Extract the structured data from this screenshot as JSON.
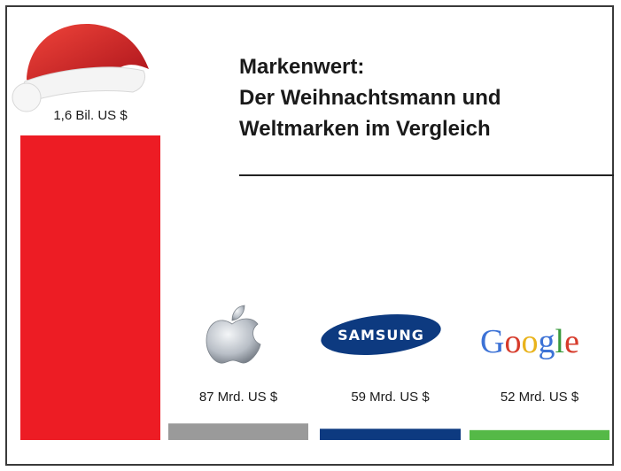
{
  "title": {
    "line1": "Markenwert:",
    "line2": "Der Weihnachtsmann und",
    "line3": "Weltmarken im Vergleich"
  },
  "colors": {
    "santa": "#ed1c24",
    "apple": "#9a9a9a",
    "samsung": "#0d3a80",
    "google": "#55b947"
  },
  "icons": {
    "santa": "santa-hat-icon",
    "apple": "apple-logo-icon",
    "samsung": "samsung-logo-icon",
    "google": "google-logo-icon"
  },
  "logos": {
    "samsung": "SAMSUNG",
    "google": [
      "G",
      "o",
      "o",
      "g",
      "l",
      "e"
    ]
  },
  "chart_data": {
    "type": "bar",
    "categories": [
      "Weihnachtsmann",
      "Apple",
      "Samsung",
      "Google"
    ],
    "values": [
      1600,
      87,
      59,
      52
    ],
    "value_labels": [
      "1,6 Bil. US $",
      "87 Mrd. US $",
      "59 Mrd. US $",
      "52 Mrd. US $"
    ],
    "title": "Markenwert: Der Weihnachtsmann und Weltmarken im Vergleich",
    "xlabel": "",
    "ylabel": "",
    "ylim": [
      0,
      1600
    ],
    "grid": false,
    "legend": "none"
  }
}
